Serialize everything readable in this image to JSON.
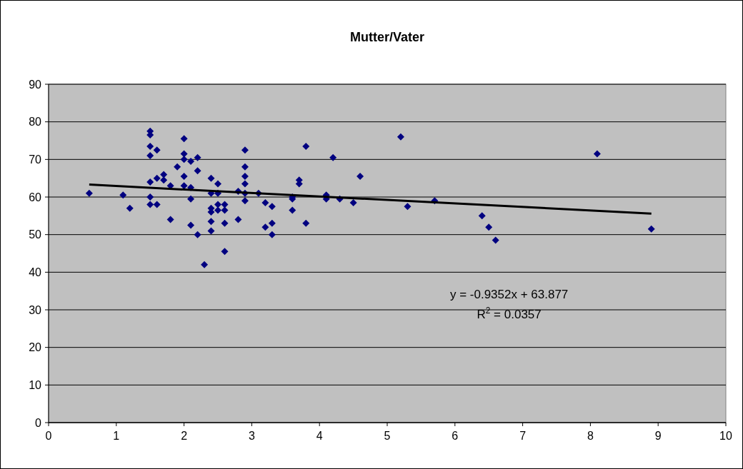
{
  "chart_data": {
    "type": "scatter",
    "title": "Mutter/Vater",
    "xlim": [
      0,
      10
    ],
    "ylim": [
      0,
      90
    ],
    "xticks": [
      0,
      1,
      2,
      3,
      4,
      5,
      6,
      7,
      8,
      9,
      10
    ],
    "yticks": [
      0,
      10,
      20,
      30,
      40,
      50,
      60,
      70,
      80,
      90
    ],
    "grid": "y",
    "marker": "diamond",
    "series": [
      {
        "color": "#000080",
        "x": [
          0.6,
          1.1,
          1.2,
          1.5,
          1.5,
          1.5,
          1.5,
          1.5,
          1.5,
          1.5,
          1.6,
          1.6,
          1.6,
          1.7,
          1.7,
          1.8,
          1.8,
          1.9,
          2.0,
          2.0,
          2.0,
          2.0,
          2.0,
          2.1,
          2.1,
          2.1,
          2.1,
          2.2,
          2.2,
          2.2,
          2.3,
          2.4,
          2.4,
          2.4,
          2.4,
          2.4,
          2.4,
          2.5,
          2.5,
          2.5,
          2.5,
          2.6,
          2.6,
          2.6,
          2.6,
          2.8,
          2.8,
          2.9,
          2.9,
          2.9,
          2.9,
          2.9,
          2.9,
          3.1,
          3.2,
          3.2,
          3.3,
          3.3,
          3.3,
          3.6,
          3.6,
          3.6,
          3.7,
          3.7,
          3.8,
          3.8,
          4.1,
          4.1,
          4.2,
          4.3,
          4.5,
          4.6,
          5.2,
          5.3,
          5.7,
          6.4,
          6.5,
          6.6,
          8.1,
          8.9
        ],
        "values": [
          61,
          60.5,
          57,
          77.5,
          76.5,
          73.5,
          71,
          64,
          60,
          58,
          72.5,
          65,
          58,
          66,
          64.5,
          54,
          63,
          68,
          75.5,
          71.5,
          70,
          65.5,
          63,
          69.5,
          62.5,
          59.5,
          52.5,
          70.5,
          67,
          50,
          42,
          65,
          61,
          57,
          56,
          53.5,
          51,
          63.5,
          61,
          58,
          56.5,
          58,
          56.5,
          53,
          45.5,
          61.5,
          54,
          72.5,
          68,
          65.5,
          63.5,
          61,
          59,
          61,
          58.5,
          52,
          57.5,
          53,
          50,
          60,
          59.5,
          56.5,
          64.5,
          63.5,
          73.5,
          53,
          60.5,
          59.5,
          70.5,
          59.5,
          58.5,
          65.5,
          76,
          57.5,
          59,
          55,
          52,
          48.5,
          71.5,
          51.5
        ]
      },
      {
        "type": "line",
        "color": "#000000",
        "marker": "none",
        "x": [
          0.6,
          8.9
        ],
        "values": [
          63.3,
          55.6
        ]
      }
    ],
    "annotations": [
      "y = -0.9352x + 63.877",
      "R$^{2}$ = 0.0357"
    ]
  }
}
